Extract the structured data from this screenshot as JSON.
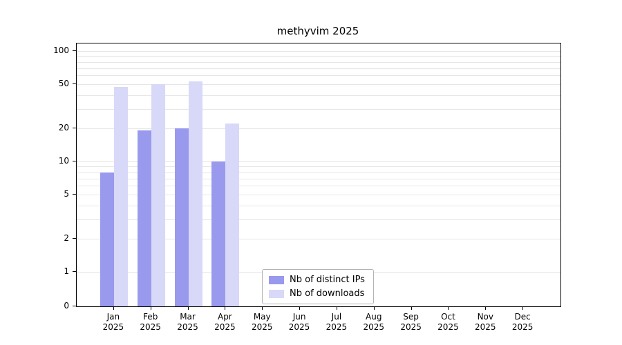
{
  "figure": {
    "title": "methyvim 2025"
  },
  "chart_data": {
    "type": "bar",
    "title": "methyvim 2025",
    "categories": [
      "Jan",
      "Feb",
      "Mar",
      "Apr",
      "May",
      "Jun",
      "Jul",
      "Aug",
      "Sep",
      "Oct",
      "Nov",
      "Dec"
    ],
    "x_tick_year": "2025",
    "series": [
      {
        "name": "Nb of distinct IPs",
        "color": "#9999ee",
        "values": [
          8,
          19,
          20,
          10,
          0,
          0,
          0,
          0,
          0,
          0,
          0,
          0
        ]
      },
      {
        "name": "Nb of downloads",
        "color": "#d8d8f8",
        "values": [
          47,
          50,
          53,
          22,
          0,
          0,
          0,
          0,
          0,
          0,
          0,
          0
        ]
      }
    ],
    "y_scale": "log-with-zero-baseline",
    "y_ticks": [
      0,
      1,
      2,
      5,
      10,
      20,
      50,
      100
    ],
    "y_minor_gridlines": [
      1,
      2,
      3,
      4,
      5,
      6,
      7,
      8,
      9,
      10,
      20,
      30,
      40,
      50,
      60,
      70,
      80,
      90,
      100
    ],
    "ylim": [
      0,
      100
    ],
    "grid": true,
    "legend_position": "inside-lower-center-left"
  }
}
